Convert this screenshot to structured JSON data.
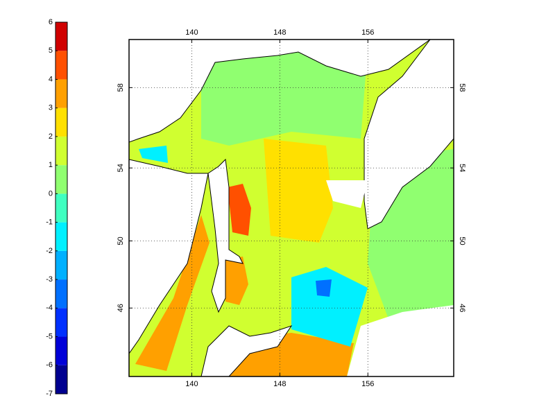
{
  "map": {
    "lon_ticks": [
      140,
      148,
      156
    ],
    "lat_ticks": [
      46,
      50,
      54,
      58
    ],
    "xlim": [
      134.3,
      163.8
    ],
    "ylim": [
      41.6,
      60.2
    ],
    "projection": "mercator",
    "grid": true,
    "field_values": [
      1.5,
      0.5,
      2,
      4.5,
      3.5,
      3,
      3,
      -1.5,
      -3.5,
      0.5,
      3,
      -2
    ],
    "land_color": "#ffffff"
  },
  "colorbar": {
    "ticks": [
      -7,
      -6,
      -5,
      -4,
      -3,
      -2,
      -1,
      0,
      1,
      2,
      3,
      4,
      5,
      6
    ],
    "colors": [
      "#000090",
      "#0000d8",
      "#0030ff",
      "#0070ff",
      "#00b0ff",
      "#00f0ff",
      "#40ffc0",
      "#90ff70",
      "#d0ff30",
      "#ffe000",
      "#ffa000",
      "#ff5000",
      "#d00000"
    ]
  }
}
